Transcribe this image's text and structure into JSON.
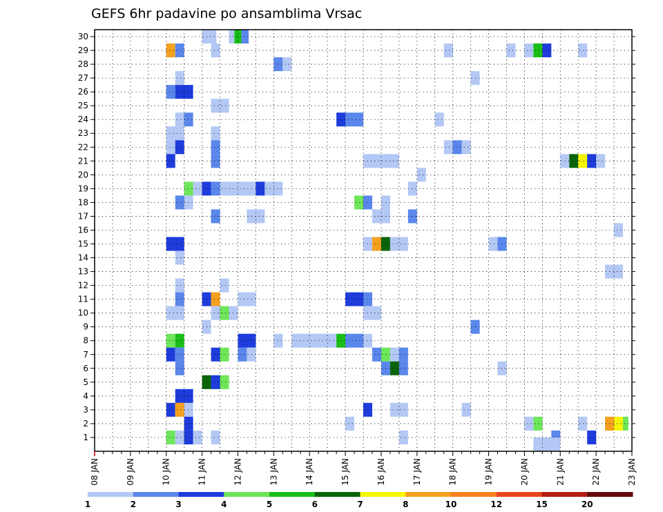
{
  "chart_data": {
    "type": "heatmap",
    "title": "GEFS 6hr padavine po ansamblima Vrsac",
    "x_ticks": [
      "08 JAN",
      "09 JAN",
      "10 JAN",
      "11 JAN",
      "12 JAN",
      "13 JAN",
      "14 JAN",
      "15 JAN",
      "16 JAN",
      "17 JAN",
      "18 JAN",
      "19 JAN",
      "20 JAN",
      "21 JAN",
      "22 JAN",
      "23 JAN"
    ],
    "y_ticks": [
      1,
      2,
      3,
      4,
      5,
      6,
      7,
      8,
      9,
      10,
      11,
      12,
      13,
      14,
      15,
      16,
      17,
      18,
      19,
      20,
      21,
      22,
      23,
      24,
      25,
      26,
      27,
      28,
      29,
      30
    ],
    "xlim": [
      "08 JAN",
      "23 JAN"
    ],
    "ylim": [
      1,
      30
    ],
    "grid": true,
    "legend": {
      "placement": "bottom",
      "labels": [
        "1",
        "2",
        "3",
        "4",
        "5",
        "6",
        "7",
        "8",
        "10",
        "12",
        "15",
        "20"
      ],
      "colors": [
        "#b4c8f5",
        "#5a87eb",
        "#1e3cdc",
        "#6ee65a",
        "#19be19",
        "#0a640a",
        "#f5f50a",
        "#f5a01e",
        "#f5821e",
        "#e6461e",
        "#b41e14",
        "#640a0a"
      ]
    },
    "bin_colors": [
      "#b4c8f5",
      "#5a87eb",
      "#1e3cdc",
      "#6ee65a",
      "#19be19",
      "#0a640a",
      "#f5f50a",
      "#f5a01e"
    ],
    "cells": [
      [
        "30",
        [
          "11.0",
          "11.4",
          "b1"
        ],
        [
          "11.75",
          "11.9",
          "b1"
        ],
        [
          "11.9",
          "12.1",
          "b5"
        ],
        [
          "12.1",
          "12.3",
          "b2"
        ]
      ],
      [
        "29",
        [
          "10.0",
          "10.25",
          "b8"
        ],
        [
          "10.25",
          "10.5",
          "b2"
        ],
        [
          "11.25",
          "11.5",
          "b1"
        ],
        [
          "17.75",
          "18.0",
          "b1"
        ],
        [
          "19.5",
          "19.75",
          "b1"
        ],
        [
          "20.0",
          "20.25",
          "b1"
        ],
        [
          "20.25",
          "20.5",
          "b5"
        ],
        [
          "20.5",
          "20.75",
          "b3"
        ],
        [
          "21.5",
          "21.75",
          "b1"
        ]
      ],
      [
        "28",
        [
          "13.0",
          "13.25",
          "b2"
        ],
        [
          "13.25",
          "13.5",
          "b1"
        ]
      ],
      [
        "27",
        [
          "10.25",
          "10.5",
          "b1"
        ],
        [
          "18.5",
          "18.75",
          "b1"
        ]
      ],
      [
        "26",
        [
          "10.0",
          "10.25",
          "b2"
        ],
        [
          "10.25",
          "10.75",
          "b3"
        ]
      ],
      [
        "25",
        [
          "11.25",
          "11.75",
          "b1"
        ]
      ],
      [
        "24",
        [
          "10.25",
          "10.5",
          "b1"
        ],
        [
          "10.5",
          "10.75",
          "b2"
        ],
        [
          "14.75",
          "15.0",
          "b3"
        ],
        [
          "15.0",
          "15.5",
          "b2"
        ],
        [
          "17.5",
          "17.75",
          "b1"
        ]
      ],
      [
        "23",
        [
          "10.0",
          "10.5",
          "b1"
        ],
        [
          "11.25",
          "11.5",
          "b1"
        ]
      ],
      [
        "22",
        [
          "10.0",
          "10.25",
          "b1"
        ],
        [
          "10.25",
          "10.5",
          "b3"
        ],
        [
          "11.25",
          "11.5",
          "b2"
        ],
        [
          "17.75",
          "18.0",
          "b1"
        ],
        [
          "18.0",
          "18.25",
          "b2"
        ],
        [
          "18.25",
          "18.5",
          "b1"
        ]
      ],
      [
        "21",
        [
          "10.0",
          "10.25",
          "b3"
        ],
        [
          "11.25",
          "11.5",
          "b2"
        ],
        [
          "15.5",
          "16.5",
          "b1"
        ],
        [
          "21.0",
          "21.25",
          "b1"
        ],
        [
          "21.25",
          "21.5",
          "b6"
        ],
        [
          "21.5",
          "21.75",
          "b7"
        ],
        [
          "21.75",
          "22.0",
          "b3"
        ],
        [
          "22.0",
          "22.25",
          "b1"
        ]
      ],
      [
        "20",
        [
          "17.0",
          "17.25",
          "b1"
        ]
      ],
      [
        "19",
        [
          "10.5",
          "10.75",
          "b4"
        ],
        [
          "10.75",
          "11.0",
          "b1"
        ],
        [
          "11.0",
          "11.25",
          "b3"
        ],
        [
          "11.25",
          "11.5",
          "b2"
        ],
        [
          "11.5",
          "12.5",
          "b1"
        ],
        [
          "12.5",
          "12.75",
          "b3"
        ],
        [
          "12.75",
          "13.25",
          "b1"
        ],
        [
          "16.75",
          "17.0",
          "b1"
        ]
      ],
      [
        "18",
        [
          "10.25",
          "10.5",
          "b2"
        ],
        [
          "10.5",
          "10.75",
          "b1"
        ],
        [
          "15.25",
          "15.5",
          "b4"
        ],
        [
          "15.5",
          "15.75",
          "b2"
        ],
        [
          "16.0",
          "16.25",
          "b1"
        ]
      ],
      [
        "17",
        [
          "11.25",
          "11.5",
          "b2"
        ],
        [
          "12.25",
          "12.75",
          "b1"
        ],
        [
          "15.75",
          "16.25",
          "b1"
        ],
        [
          "16.75",
          "17.0",
          "b2"
        ]
      ],
      [
        "16",
        [
          "22.5",
          "22.75",
          "b1"
        ]
      ],
      [
        "15",
        [
          "10.0",
          "10.5",
          "b3"
        ],
        [
          "15.5",
          "15.75",
          "b1"
        ],
        [
          "15.75",
          "16.0",
          "b8"
        ],
        [
          "16.0",
          "16.25",
          "b6"
        ],
        [
          "16.25",
          "16.75",
          "b1"
        ],
        [
          "19.0",
          "19.25",
          "b1"
        ],
        [
          "19.25",
          "19.5",
          "b2"
        ]
      ],
      [
        "14",
        [
          "10.25",
          "10.5",
          "b1"
        ]
      ],
      [
        "13",
        [
          "22.25",
          "22.75",
          "b1"
        ]
      ],
      [
        "12",
        [
          "10.25",
          "10.5",
          "b1"
        ],
        [
          "11.5",
          "11.75",
          "b1"
        ]
      ],
      [
        "11",
        [
          "10.25",
          "10.5",
          "b2"
        ],
        [
          "11.0",
          "11.25",
          "b3"
        ],
        [
          "11.25",
          "11.5",
          "b8"
        ],
        [
          "12.0",
          "12.5",
          "b1"
        ],
        [
          "15.0",
          "15.5",
          "b3"
        ],
        [
          "15.5",
          "15.75",
          "b2"
        ]
      ],
      [
        "10",
        [
          "10.0",
          "10.5",
          "b1"
        ],
        [
          "11.25",
          "11.5",
          "b1"
        ],
        [
          "11.5",
          "11.75",
          "b4"
        ],
        [
          "11.75",
          "12.0",
          "b1"
        ],
        [
          "15.5",
          "16.0",
          "b1"
        ]
      ],
      [
        "9",
        [
          "11.0",
          "11.25",
          "b1"
        ],
        [
          "18.5",
          "18.75",
          "b2"
        ]
      ],
      [
        "8",
        [
          "10.0",
          "10.25",
          "b4"
        ],
        [
          "10.25",
          "10.5",
          "b5"
        ],
        [
          "12.0",
          "12.5",
          "b3"
        ],
        [
          "13.0",
          "13.25",
          "b1"
        ],
        [
          "13.5",
          "14.75",
          "b1"
        ],
        [
          "14.75",
          "15.0",
          "b5"
        ],
        [
          "15.0",
          "15.5",
          "b2"
        ],
        [
          "15.5",
          "15.75",
          "b1"
        ]
      ],
      [
        "7",
        [
          "10.0",
          "10.25",
          "b3"
        ],
        [
          "10.25",
          "10.5",
          "b2"
        ],
        [
          "11.25",
          "11.5",
          "b3"
        ],
        [
          "11.5",
          "11.75",
          "b4"
        ],
        [
          "12.0",
          "12.25",
          "b2"
        ],
        [
          "12.25",
          "12.5",
          "b1"
        ],
        [
          "15.75",
          "16.0",
          "b2"
        ],
        [
          "16.0",
          "16.25",
          "b4"
        ],
        [
          "16.25",
          "16.5",
          "b1"
        ],
        [
          "16.5",
          "16.75",
          "b2"
        ]
      ],
      [
        "6",
        [
          "10.25",
          "10.5",
          "b2"
        ],
        [
          "16.0",
          "16.25",
          "b2"
        ],
        [
          "16.25",
          "16.5",
          "b6"
        ],
        [
          "16.5",
          "16.75",
          "b2"
        ],
        [
          "19.25",
          "19.5",
          "b1"
        ]
      ],
      [
        "5",
        [
          "11.0",
          "11.25",
          "b6"
        ],
        [
          "11.25",
          "11.5",
          "b3"
        ],
        [
          "11.5",
          "11.75",
          "b4"
        ]
      ],
      [
        "4",
        [
          "10.25",
          "10.75",
          "b3"
        ]
      ],
      [
        "3",
        [
          "10.0",
          "10.25",
          "b3"
        ],
        [
          "10.25",
          "10.5",
          "b8"
        ],
        [
          "10.5",
          "10.75",
          "b1"
        ],
        [
          "15.5",
          "15.75",
          "b3"
        ],
        [
          "16.25",
          "16.75",
          "b1"
        ],
        [
          "18.25",
          "18.5",
          "b1"
        ]
      ],
      [
        "2",
        [
          "10.5",
          "10.75",
          "b3"
        ],
        [
          "15.0",
          "15.25",
          "b1"
        ],
        [
          "20.0",
          "20.25",
          "b1"
        ],
        [
          "20.25",
          "20.5",
          "b4"
        ],
        [
          "21.5",
          "21.75",
          "b1"
        ],
        [
          "22.25",
          "22.5",
          "b8"
        ],
        [
          "22.5",
          "22.75",
          "b7"
        ],
        [
          "22.75",
          "22.9",
          "b4"
        ]
      ],
      [
        "1",
        [
          "10.0",
          "10.25",
          "b4"
        ],
        [
          "10.25",
          "10.5",
          "b1"
        ],
        [
          "10.5",
          "10.75",
          "b3"
        ],
        [
          "10.75",
          "11.0",
          "b1"
        ],
        [
          "11.25",
          "11.5",
          "b1"
        ],
        [
          "16.5",
          "16.75",
          "b1"
        ],
        [
          "20.75",
          "21.0",
          "b2"
        ],
        [
          "21.75",
          "22.0",
          "b3"
        ]
      ],
      [
        "0.5",
        [
          "20.25",
          "21.0",
          "b1"
        ]
      ]
    ]
  }
}
